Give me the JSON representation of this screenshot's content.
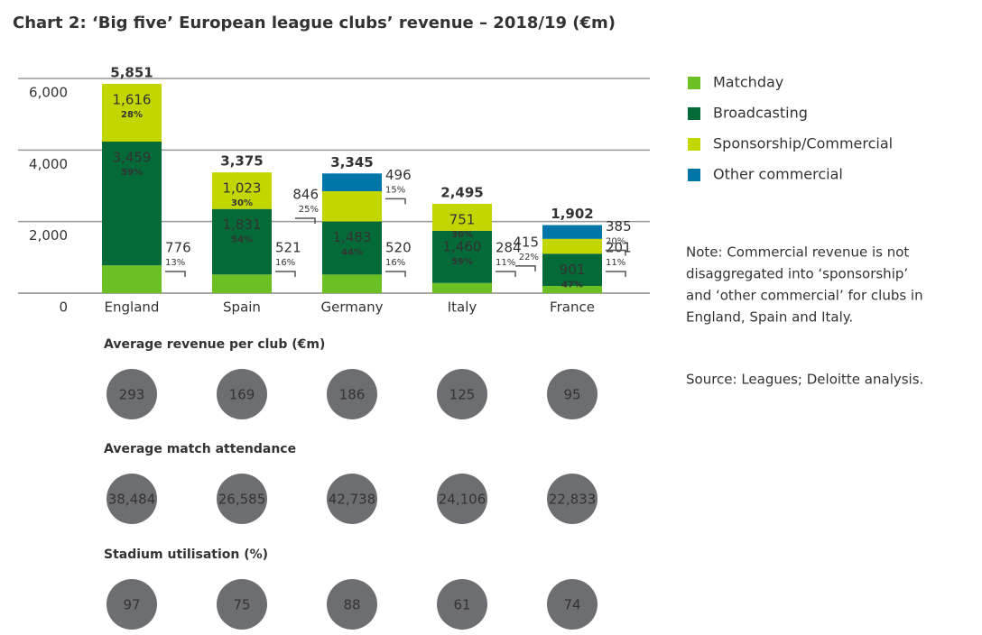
{
  "chart_data": {
    "type": "stacked_bar",
    "title": "Chart 2: ‘Big five’ European league clubs’ revenue – 2018/19 (€m)",
    "categories": [
      "England",
      "Spain",
      "Germany",
      "Italy",
      "France"
    ],
    "series": [
      {
        "name": "Matchday",
        "color": "#6cc024",
        "values": [
          776,
          521,
          520,
          284,
          201
        ],
        "shares": [
          13,
          16,
          16,
          11,
          11
        ],
        "share_labels": [
          "13%",
          "16%",
          "16%",
          "11%",
          "11%"
        ]
      },
      {
        "name": "Broadcasting",
        "color": "#046a38",
        "values": [
          3459,
          1831,
          1483,
          1460,
          901
        ],
        "value_labels": [
          "3,459",
          "1,831",
          "1,483",
          "1,460",
          "901"
        ],
        "shares": [
          59,
          54,
          44,
          59,
          47
        ],
        "share_labels": [
          "59%",
          "54%",
          "44%",
          "59%",
          "47%"
        ]
      },
      {
        "name": "Sponsorship/Commercial",
        "color": "#c4d600",
        "values": [
          1616,
          1023,
          846,
          751,
          415
        ],
        "value_labels": [
          "1,616",
          "1,023",
          "846",
          "751",
          "415"
        ],
        "shares": [
          28,
          30,
          25,
          30,
          22
        ],
        "share_labels": [
          "28%",
          "30%",
          "25%",
          "30%",
          "22%"
        ]
      },
      {
        "name": "Other commercial",
        "color": "#0076a8",
        "values": [
          null,
          null,
          496,
          null,
          385
        ],
        "shares": [
          null,
          null,
          15,
          null,
          20
        ],
        "share_labels": [
          null,
          null,
          "15%",
          null,
          "20%"
        ]
      }
    ],
    "totals": [
      5851,
      3375,
      3345,
      2495,
      1902
    ],
    "total_labels": [
      "5,851",
      "3,375",
      "3,345",
      "2,495",
      "1,902"
    ],
    "ylim": [
      0,
      6000
    ],
    "yticks": [
      0,
      {
        "value": 2000,
        "label": "2,000"
      },
      {
        "value": 4000,
        "label": "4,000"
      },
      {
        "value": 6000,
        "label": "6,000"
      }
    ],
    "grid": true,
    "legend": "right",
    "panels": [
      {
        "title": "Average revenue per club (€m)",
        "values": [
          293,
          169,
          186,
          125,
          95
        ]
      },
      {
        "title": "Average match attendance",
        "values": [
          38484,
          26585,
          42738,
          24106,
          22833
        ],
        "value_labels": [
          "38,484",
          "26,585",
          "42,738",
          "24,106",
          "22,833"
        ]
      },
      {
        "title": "Stadium utilisation (%)",
        "values": [
          97,
          75,
          88,
          61,
          74
        ]
      }
    ],
    "note": [
      "Note: Commercial revenue is not",
      "disaggregated into ‘sponsorship’",
      "and ‘other commercial’ for clubs in",
      "England, Spain and Italy."
    ],
    "source": "Source: Leagues; Deloitte analysis."
  }
}
